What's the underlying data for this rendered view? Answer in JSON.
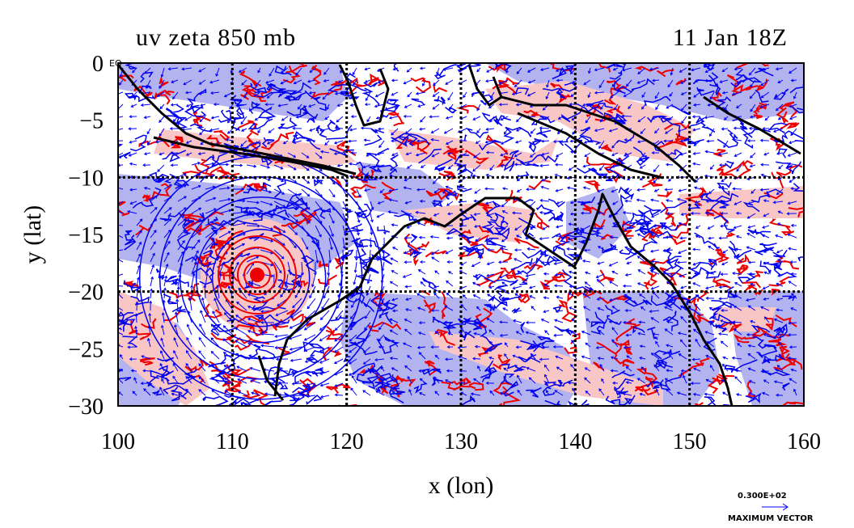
{
  "header": {
    "title_left": "uv zeta 850 mb",
    "title_right": "11 Jan 18Z"
  },
  "corner_label": "EQ",
  "legend": {
    "value": "0.300E+02",
    "label": "MAXIMUM VECTOR"
  },
  "colors": {
    "positive_fill": "#f9c6c6",
    "negative_fill": "#b3b3f0",
    "positive_contour": "#ee0000",
    "negative_contour": "#0000ee",
    "vector": "#0000ff",
    "coast": "#000000"
  },
  "chart_data": {
    "type": "map",
    "xlabel": "x (lon)",
    "ylabel": "y (lat)",
    "xlim": [
      100,
      160
    ],
    "ylim": [
      -30,
      0
    ],
    "xticks": [
      100,
      110,
      120,
      130,
      140,
      150,
      160
    ],
    "yticks": [
      0,
      -5,
      -10,
      -15,
      -20,
      -25,
      -30
    ],
    "ytick_labels": [
      "0",
      "−5",
      "−10",
      "−15",
      "−20",
      "−25",
      "−30"
    ],
    "grid_lon": [
      110,
      120,
      130,
      140,
      150
    ],
    "grid_lat": [
      -10,
      -20
    ],
    "grid": true,
    "cyclone_center": {
      "lon": 112.5,
      "lat": -18.8
    }
  }
}
